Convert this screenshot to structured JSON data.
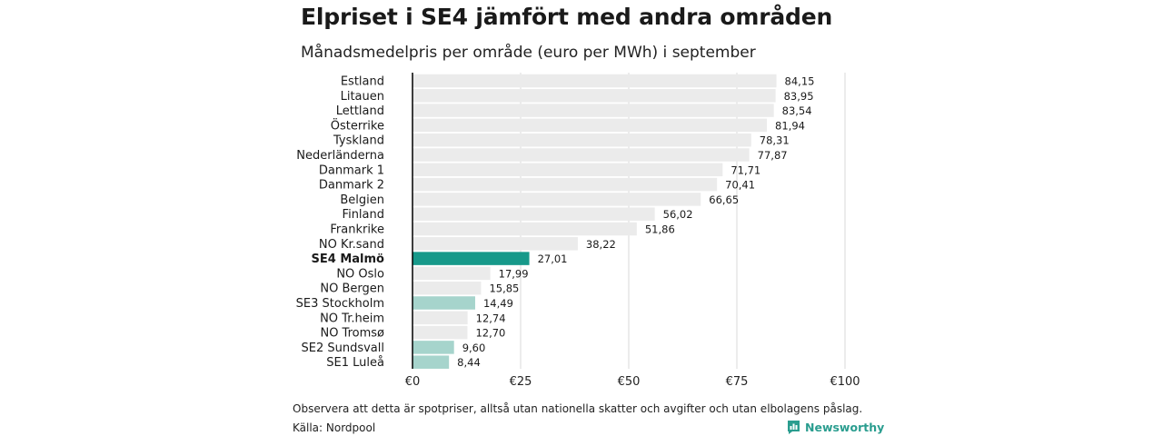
{
  "header": {
    "title": "Elpriset i SE4 jämfört med andra områden",
    "subtitle": "Månadsmedelpris per område (euro per MWh) i september"
  },
  "footer": {
    "note": "Observera att detta är spotpriser, alltså utan nationella skatter och avgifter och utan elbolagens påslag.",
    "source": "Källa: Nordpool",
    "brand": "Newsworthy"
  },
  "colors": {
    "bar_default": "#ebebeb",
    "bar_highlight": "#17998a",
    "bar_swedish": "#a6d4cc",
    "brand": "#2a9d8f"
  },
  "chart_data": {
    "type": "bar",
    "orientation": "horizontal",
    "categories": [
      "Estland",
      "Litauen",
      "Lettland",
      "Österrike",
      "Tyskland",
      "Nederländerna",
      "Danmark 1",
      "Danmark 2",
      "Belgien",
      "Finland",
      "Frankrike",
      "NO Kr.sand",
      "SE4 Malmö",
      "NO Oslo",
      "NO Bergen",
      "SE3 Stockholm",
      "NO Tr.heim",
      "NO Tromsø",
      "SE2 Sundsvall",
      "SE1 Luleå"
    ],
    "values": [
      84.15,
      83.95,
      83.54,
      81.94,
      78.31,
      77.87,
      71.71,
      70.41,
      66.65,
      56.02,
      51.86,
      38.22,
      27.01,
      17.99,
      15.85,
      14.49,
      12.74,
      12.7,
      9.6,
      8.44
    ],
    "value_labels": [
      "84,15",
      "83,95",
      "83,54",
      "81,94",
      "78,31",
      "77,87",
      "71,71",
      "70,41",
      "66,65",
      "56,02",
      "51,86",
      "38,22",
      "27,01",
      "17,99",
      "15,85",
      "14,49",
      "12,74",
      "12,70",
      "9,60",
      "8,44"
    ],
    "highlight": [
      "default",
      "default",
      "default",
      "default",
      "default",
      "default",
      "default",
      "default",
      "default",
      "default",
      "default",
      "default",
      "highlight",
      "default",
      "default",
      "swedish",
      "default",
      "default",
      "swedish",
      "swedish"
    ],
    "xticks": [
      0,
      25,
      50,
      75,
      100
    ],
    "xtick_labels": [
      "€0",
      "€25",
      "€50",
      "€75",
      "€100"
    ],
    "xlim": [
      0,
      100
    ],
    "grid": true,
    "legend": "none"
  }
}
